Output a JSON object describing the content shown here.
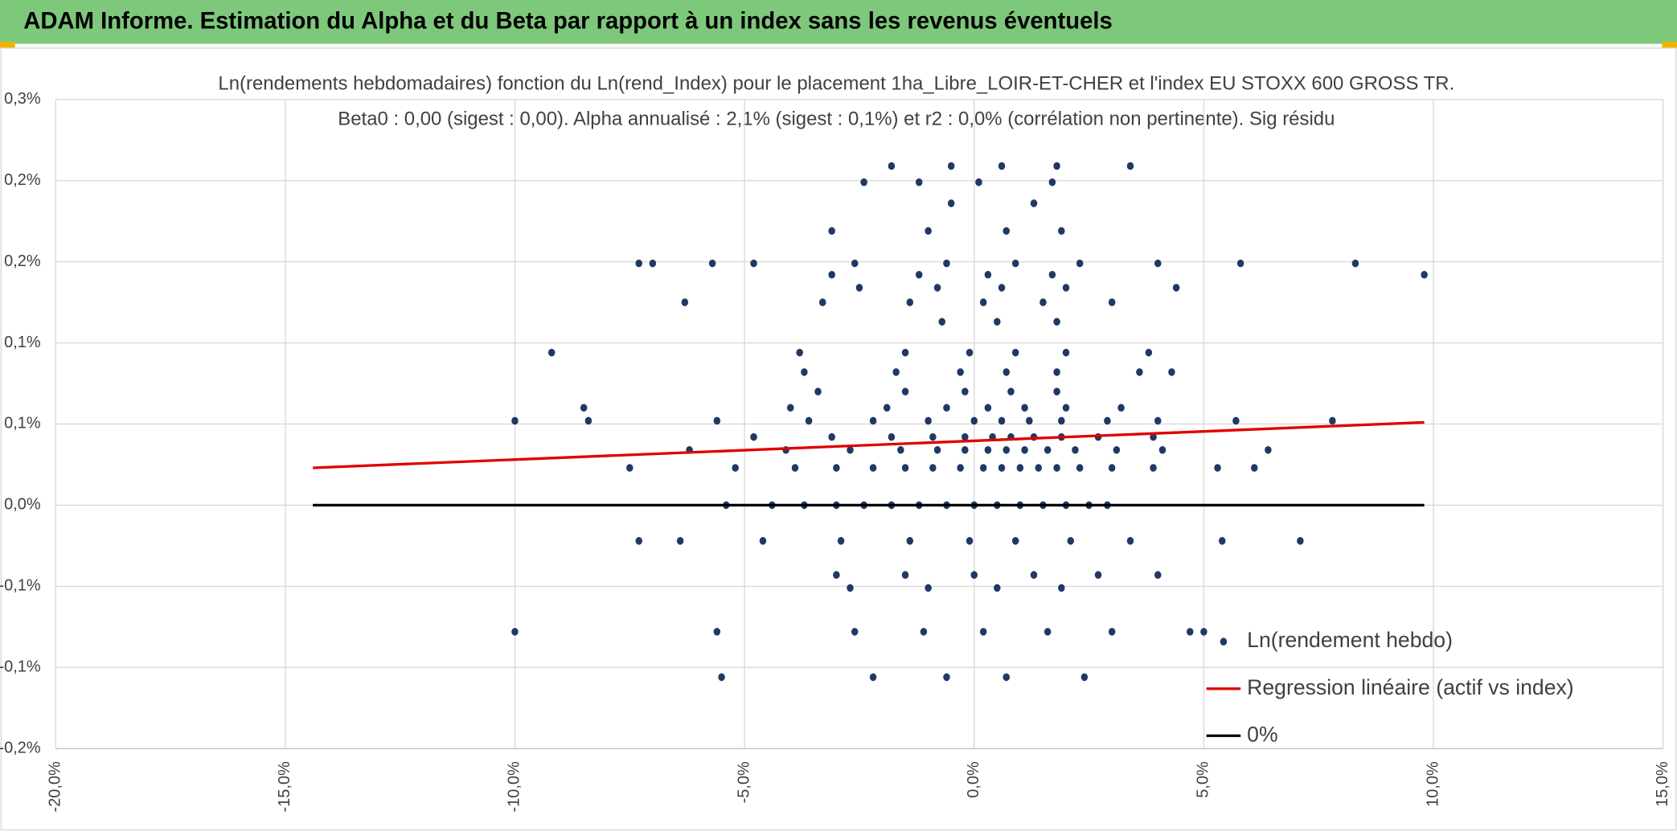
{
  "header": {
    "title": "ADAM Informe. Estimation du Alpha et du Beta par rapport à un index sans les revenus éventuels"
  },
  "chart_data": {
    "type": "scatter",
    "title": "Ln(rendements hebdomadaires) fonction du Ln(rend_Index) pour le placement 1ha_Libre_LOIR-ET-CHER et l'index EU STOXX 600 GROSS TR.",
    "subtitle": "Beta0 : 0,00 (sigest : 0,00). Alpha annualisé : 2,1% (sigest : 0,1%) et r2 : 0,0% (corrélation non pertinente). Sig résidu",
    "xlim": [
      -20,
      15
    ],
    "xticks": [
      {
        "value": -20,
        "label": "-20,0%"
      },
      {
        "value": -15,
        "label": "-15,0%"
      },
      {
        "value": -10,
        "label": "-10,0%"
      },
      {
        "value": -5,
        "label": "-5,0%"
      },
      {
        "value": 0,
        "label": "0,0%"
      },
      {
        "value": 5,
        "label": "5,0%"
      },
      {
        "value": 10,
        "label": "10,0%"
      },
      {
        "value": 15,
        "label": "15,0%"
      }
    ],
    "ylim": [
      -0.15,
      0.25
    ],
    "yticks": [
      {
        "value": 0.25,
        "label": "0,3%"
      },
      {
        "value": 0.2,
        "label": "0,2%"
      },
      {
        "value": 0.15,
        "label": "0,2%"
      },
      {
        "value": 0.1,
        "label": "0,1%"
      },
      {
        "value": 0.05,
        "label": "0,1%"
      },
      {
        "value": 0,
        "label": "0,0%"
      },
      {
        "value": -0.05,
        "label": "-0,1%"
      },
      {
        "value": -0.1,
        "label": "-0,1%"
      },
      {
        "value": -0.15,
        "label": "-0,2%"
      }
    ],
    "grid": true,
    "legend": "bottom-right",
    "series": [
      {
        "name": "Ln(rendement hebdo)",
        "type": "scatter",
        "color": "#203864",
        "x": [
          -5.4,
          -4.4,
          -3.7,
          -3.0,
          -2.4,
          -1.8,
          -1.2,
          -0.6,
          0,
          0.5,
          1.0,
          1.5,
          2.0,
          2.5,
          2.9,
          -7.5,
          -5.2,
          -3.9,
          -3.0,
          -2.2,
          -1.5,
          -0.9,
          -0.3,
          0.2,
          0.6,
          1.0,
          1.4,
          1.8,
          2.3,
          3.0,
          3.9,
          5.3,
          6.1,
          -6.2,
          -4.1,
          -2.7,
          -1.6,
          -0.8,
          -0.2,
          0.3,
          0.7,
          1.1,
          1.6,
          2.2,
          3.1,
          4.1,
          6.4,
          -4.8,
          -3.1,
          -1.8,
          -0.9,
          -0.2,
          0.4,
          0.8,
          1.3,
          1.9,
          2.7,
          3.9,
          -10.0,
          -8.4,
          -5.6,
          -3.6,
          -2.2,
          -1.0,
          0,
          0.6,
          1.2,
          1.9,
          2.9,
          4.0,
          5.7,
          7.8,
          -8.5,
          -4.0,
          -1.9,
          -0.6,
          0.3,
          1.1,
          2.0,
          3.2,
          -3.4,
          -1.5,
          -0.2,
          0.8,
          1.8,
          -3.7,
          -1.7,
          -0.3,
          0.7,
          1.8,
          3.6,
          4.3,
          -9.2,
          -3.8,
          -1.5,
          -0.1,
          0.9,
          2.0,
          3.8,
          -0.7,
          0.5,
          1.8,
          -6.3,
          -3.3,
          -1.4,
          0.2,
          1.5,
          3.0,
          -2.5,
          -0.8,
          0.6,
          2.0,
          4.4,
          -3.1,
          -1.2,
          0.3,
          1.7,
          9.8,
          -7.3,
          -7.0,
          -5.7,
          -4.8,
          -2.6,
          -0.6,
          0.9,
          2.3,
          4.0,
          5.8,
          8.3,
          -3.1,
          -1.0,
          0.7,
          1.9,
          -0.5,
          1.3,
          -2.4,
          -1.2,
          0.1,
          1.7,
          -1.8,
          -0.5,
          0.6,
          1.8,
          3.4,
          -7.3,
          -6.4,
          -4.6,
          -2.9,
          -1.4,
          -0.1,
          0.9,
          2.1,
          3.4,
          5.4,
          7.1,
          -3.0,
          -1.5,
          0.0,
          1.3,
          2.7,
          4.0,
          -2.7,
          -1.0,
          0.5,
          1.9,
          -10.0,
          -5.6,
          -2.6,
          -1.1,
          0.2,
          1.6,
          3.0,
          4.7,
          5.0,
          -5.5,
          -2.2,
          -0.6,
          0.7,
          2.4
        ],
        "values": [
          0,
          0,
          0,
          0,
          0,
          0,
          0,
          0,
          0,
          0,
          0,
          0,
          0,
          0,
          0,
          0.023,
          0.023,
          0.023,
          0.023,
          0.023,
          0.023,
          0.023,
          0.023,
          0.023,
          0.023,
          0.023,
          0.023,
          0.023,
          0.023,
          0.023,
          0.023,
          0.023,
          0.023,
          0.034,
          0.034,
          0.034,
          0.034,
          0.034,
          0.034,
          0.034,
          0.034,
          0.034,
          0.034,
          0.034,
          0.034,
          0.034,
          0.034,
          0.042,
          0.042,
          0.042,
          0.042,
          0.042,
          0.042,
          0.042,
          0.042,
          0.042,
          0.042,
          0.042,
          0.052,
          0.052,
          0.052,
          0.052,
          0.052,
          0.052,
          0.052,
          0.052,
          0.052,
          0.052,
          0.052,
          0.052,
          0.052,
          0.052,
          0.06,
          0.06,
          0.06,
          0.06,
          0.06,
          0.06,
          0.06,
          0.06,
          0.07,
          0.07,
          0.07,
          0.07,
          0.07,
          0.082,
          0.082,
          0.082,
          0.082,
          0.082,
          0.082,
          0.082,
          0.094,
          0.094,
          0.094,
          0.094,
          0.094,
          0.094,
          0.094,
          0.113,
          0.113,
          0.113,
          0.125,
          0.125,
          0.125,
          0.125,
          0.125,
          0.125,
          0.134,
          0.134,
          0.134,
          0.134,
          0.134,
          0.142,
          0.142,
          0.142,
          0.142,
          0.142,
          0.149,
          0.149,
          0.149,
          0.149,
          0.149,
          0.149,
          0.149,
          0.149,
          0.149,
          0.149,
          0.149,
          0.169,
          0.169,
          0.169,
          0.169,
          0.186,
          0.186,
          0.199,
          0.199,
          0.199,
          0.199,
          0.209,
          0.209,
          0.209,
          0.209,
          0.209,
          -0.022,
          -0.022,
          -0.022,
          -0.022,
          -0.022,
          -0.022,
          -0.022,
          -0.022,
          -0.022,
          -0.022,
          -0.022,
          -0.043,
          -0.043,
          -0.043,
          -0.043,
          -0.043,
          -0.043,
          -0.051,
          -0.051,
          -0.051,
          -0.051,
          -0.078,
          -0.078,
          -0.078,
          -0.078,
          -0.078,
          -0.078,
          -0.078,
          -0.078,
          -0.078,
          -0.106,
          -0.106,
          -0.106,
          -0.106,
          -0.106
        ]
      },
      {
        "name": "Regression linéaire (actif vs index)",
        "type": "line",
        "color": "#e00000",
        "x": [
          -14.4,
          9.8
        ],
        "values": [
          0.023,
          0.051
        ]
      },
      {
        "name": "0%",
        "type": "line",
        "color": "#000000",
        "x": [
          -14.4,
          9.8
        ],
        "values": [
          0,
          0
        ]
      }
    ]
  }
}
